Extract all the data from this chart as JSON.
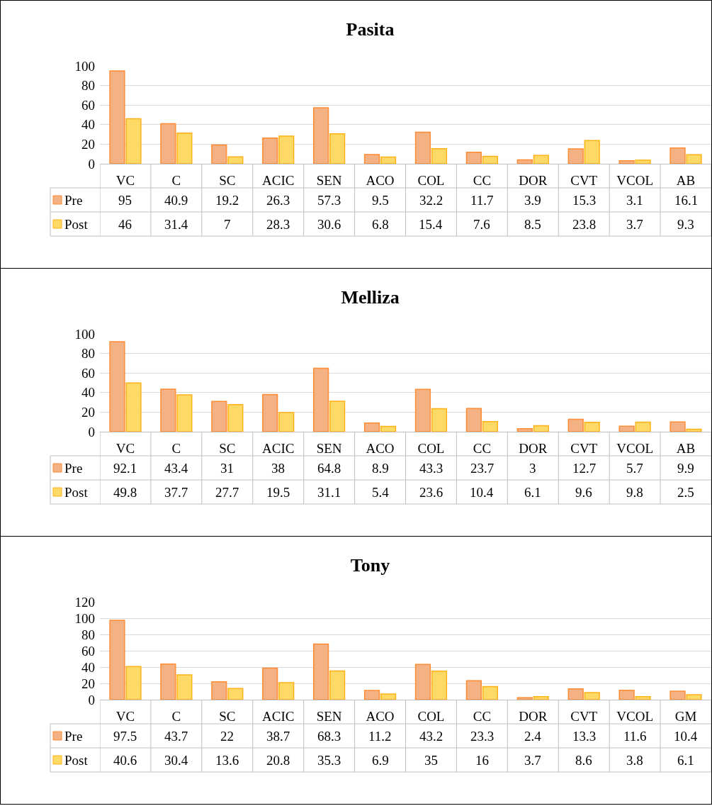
{
  "chart_data": [
    {
      "type": "bar",
      "title": "Pasita",
      "categories": [
        "VC",
        "C",
        "SC",
        "ACIC",
        "SEN",
        "ACO",
        "COL",
        "CC",
        "DOR",
        "CVT",
        "VCOL",
        "AB"
      ],
      "series": [
        {
          "name": "Pre",
          "color": "#f4b183",
          "values": [
            95,
            40.9,
            19.2,
            26.3,
            57.3,
            9.5,
            32.2,
            11.7,
            3.9,
            15.3,
            3.1,
            16.1
          ]
        },
        {
          "name": "Post",
          "color": "#ffd966",
          "values": [
            46,
            31.4,
            7,
            28.3,
            30.6,
            6.8,
            15.4,
            7.6,
            8.5,
            23.8,
            3.7,
            9.3
          ]
        }
      ],
      "ylim": [
        0,
        100
      ],
      "yticks": [
        0,
        20,
        40,
        60,
        80,
        100
      ],
      "grid": "y",
      "legend": "bottom left",
      "data_labels": true
    },
    {
      "type": "bar",
      "title": "Melliza",
      "categories": [
        "VC",
        "C",
        "SC",
        "ACIC",
        "SEN",
        "ACO",
        "COL",
        "CC",
        "DOR",
        "CVT",
        "VCOL",
        "AB"
      ],
      "series": [
        {
          "name": "Pre",
          "color": "#f4b183",
          "values": [
            92.1,
            43.4,
            31,
            38,
            64.8,
            8.9,
            43.3,
            23.7,
            3,
            12.7,
            5.7,
            9.9
          ]
        },
        {
          "name": "Post",
          "color": "#ffd966",
          "values": [
            49.8,
            37.7,
            27.7,
            19.5,
            31.1,
            5.4,
            23.6,
            10.4,
            6.1,
            9.6,
            9.8,
            2.5
          ]
        }
      ],
      "ylim": [
        0,
        100
      ],
      "yticks": [
        0,
        20,
        40,
        60,
        80,
        100
      ],
      "grid": "y",
      "legend": "bottom left",
      "data_labels": true
    },
    {
      "type": "bar",
      "title": "Tony",
      "categories": [
        "VC",
        "C",
        "SC",
        "ACIC",
        "SEN",
        "ACO",
        "COL",
        "CC",
        "DOR",
        "CVT",
        "VCOL",
        "GM"
      ],
      "series": [
        {
          "name": "Pre",
          "color": "#f4b183",
          "values": [
            97.5,
            43.7,
            22,
            38.7,
            68.3,
            11.2,
            43.2,
            23.3,
            2.4,
            13.3,
            11.6,
            10.4
          ]
        },
        {
          "name": "Post",
          "color": "#ffd966",
          "values": [
            40.6,
            30.4,
            13.6,
            20.8,
            35.3,
            6.9,
            35,
            16,
            3.7,
            8.6,
            3.8,
            6.1
          ]
        }
      ],
      "ylim": [
        0,
        120
      ],
      "yticks": [
        0,
        20,
        40,
        60,
        80,
        100,
        120
      ],
      "grid": "y",
      "legend": "bottom left",
      "data_labels": true
    }
  ]
}
